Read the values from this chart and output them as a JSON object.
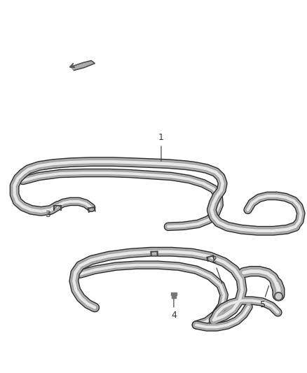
{
  "background_color": "#ffffff",
  "line_color": "#666666",
  "label_color": "#333333",
  "fig_width": 4.38,
  "fig_height": 5.33,
  "dpi": 100
}
